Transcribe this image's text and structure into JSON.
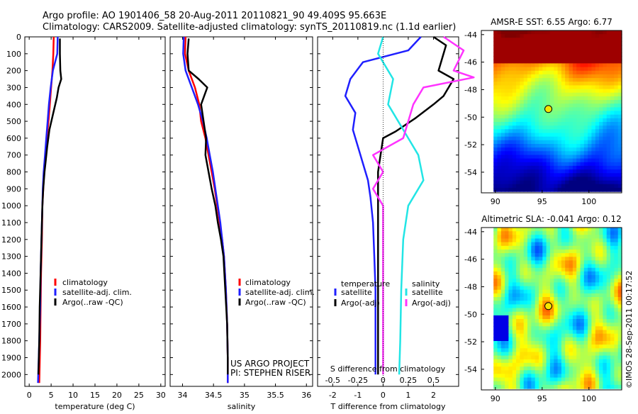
{
  "header": {
    "line1": "Argo profile: AO 1901406_58 20-Aug-2011 20110821_90 49.409S 95.663E",
    "line2": "Climatology: CARS2009. Satellite-adjusted climatology: synTS_20110819.nc (1.1d earlier)"
  },
  "footer": {
    "credit": "©IMOS 28-Sep-2011 00:17:52",
    "project": "US ARGO PROJECT",
    "pi": "PI: STEPHEN RISER"
  },
  "colors": {
    "climatology": "#ff0000",
    "satellite_t": "#1f1fff",
    "argo": "#000000",
    "satellite_s": "#22e5e5",
    "argo_s": "#ff33ff"
  },
  "chart_data": [
    {
      "id": "temperature",
      "type": "line",
      "xlabel": "temperature (deg C)",
      "xlim": [
        -1,
        31
      ],
      "xticks": [
        0,
        5,
        10,
        15,
        20,
        25,
        30
      ],
      "ylim": [
        2070,
        0
      ],
      "yticks": [
        0,
        100,
        200,
        300,
        400,
        500,
        600,
        700,
        800,
        900,
        1000,
        1100,
        1200,
        1300,
        1400,
        1500,
        1600,
        1700,
        1800,
        1900,
        2000
      ],
      "legend": [
        "climatology",
        "satellite-adj. clim.",
        "Argo(..raw -QC)"
      ],
      "series": [
        {
          "name": "climatology",
          "color": "#ff0000",
          "points": [
            [
              5.6,
              0
            ],
            [
              5.5,
              100
            ],
            [
              5.3,
              200
            ],
            [
              5.0,
              300
            ],
            [
              4.7,
              400
            ],
            [
              4.4,
              500
            ],
            [
              4.0,
              600
            ],
            [
              3.7,
              700
            ],
            [
              3.4,
              800
            ],
            [
              3.2,
              900
            ],
            [
              3.0,
              1000
            ],
            [
              2.9,
              1200
            ],
            [
              2.7,
              1400
            ],
            [
              2.6,
              1600
            ],
            [
              2.5,
              1800
            ],
            [
              2.3,
              2050
            ]
          ]
        },
        {
          "name": "satellite-adj. clim.",
          "color": "#1f1fff",
          "points": [
            [
              6.5,
              0
            ],
            [
              6.4,
              100
            ],
            [
              5.4,
              200
            ],
            [
              4.9,
              300
            ],
            [
              4.5,
              400
            ],
            [
              4.2,
              500
            ],
            [
              3.9,
              600
            ],
            [
              3.6,
              700
            ],
            [
              3.3,
              800
            ],
            [
              3.1,
              900
            ],
            [
              3.0,
              1000
            ],
            [
              2.8,
              1200
            ],
            [
              2.6,
              1400
            ],
            [
              2.5,
              1600
            ],
            [
              2.3,
              1800
            ],
            [
              2.0,
              2050
            ]
          ]
        },
        {
          "name": "Argo(..raw -QC)",
          "color": "#000000",
          "points": [
            [
              7.0,
              10
            ],
            [
              7.0,
              100
            ],
            [
              7.1,
              200
            ],
            [
              7.3,
              250
            ],
            [
              6.7,
              300
            ],
            [
              6.3,
              360
            ],
            [
              5.5,
              450
            ],
            [
              4.6,
              550
            ],
            [
              4.1,
              650
            ],
            [
              3.7,
              750
            ],
            [
              3.5,
              800
            ],
            [
              3.2,
              900
            ],
            [
              3.0,
              1000
            ],
            [
              2.8,
              1200
            ],
            [
              2.6,
              1400
            ],
            [
              2.4,
              1600
            ],
            [
              2.3,
              1800
            ],
            [
              2.1,
              2000
            ]
          ]
        }
      ]
    },
    {
      "id": "salinity",
      "type": "line",
      "xlabel": "salinity",
      "xlim": [
        33.8,
        36.1
      ],
      "xticks": [
        34,
        34.5,
        35,
        35.5,
        36
      ],
      "xticklabels": [
        "34",
        "34.5",
        "35",
        "35.5",
        "36"
      ],
      "ylim": [
        2070,
        0
      ],
      "legend": [
        "climatology",
        "satellite-adj. clim.",
        "Argo(..raw -QC)"
      ],
      "series": [
        {
          "name": "climatology",
          "color": "#ff0000",
          "points": [
            [
              34.05,
              0
            ],
            [
              34.04,
              100
            ],
            [
              34.1,
              200
            ],
            [
              34.2,
              300
            ],
            [
              34.27,
              400
            ],
            [
              34.3,
              500
            ],
            [
              34.37,
              600
            ],
            [
              34.42,
              700
            ],
            [
              34.47,
              800
            ],
            [
              34.52,
              900
            ],
            [
              34.56,
              1000
            ],
            [
              34.6,
              1100
            ],
            [
              34.64,
              1200
            ],
            [
              34.67,
              1300
            ],
            [
              34.7,
              1500
            ],
            [
              34.72,
              1700
            ],
            [
              34.73,
              1900
            ],
            [
              34.73,
              2050
            ]
          ]
        },
        {
          "name": "satellite-adj. clim.",
          "color": "#1f1fff",
          "points": [
            [
              34.02,
              0
            ],
            [
              34.01,
              100
            ],
            [
              34.05,
              200
            ],
            [
              34.15,
              300
            ],
            [
              34.25,
              400
            ],
            [
              34.33,
              500
            ],
            [
              34.39,
              600
            ],
            [
              34.44,
              700
            ],
            [
              34.49,
              800
            ],
            [
              34.53,
              900
            ],
            [
              34.57,
              1000
            ],
            [
              34.61,
              1100
            ],
            [
              34.64,
              1200
            ],
            [
              34.67,
              1300
            ],
            [
              34.7,
              1500
            ],
            [
              34.72,
              1700
            ],
            [
              34.73,
              1900
            ],
            [
              34.73,
              2050
            ]
          ]
        },
        {
          "name": "Argo(..raw -QC)",
          "color": "#000000",
          "points": [
            [
              34.1,
              10
            ],
            [
              34.08,
              100
            ],
            [
              34.1,
              200
            ],
            [
              34.26,
              250
            ],
            [
              34.4,
              300
            ],
            [
              34.3,
              400
            ],
            [
              34.34,
              500
            ],
            [
              34.38,
              600
            ],
            [
              34.37,
              700
            ],
            [
              34.42,
              800
            ],
            [
              34.47,
              900
            ],
            [
              34.53,
              1000
            ],
            [
              34.57,
              1100
            ],
            [
              34.62,
              1200
            ],
            [
              34.66,
              1300
            ],
            [
              34.69,
              1500
            ],
            [
              34.72,
              1700
            ],
            [
              34.73,
              1900
            ],
            [
              34.73,
              2000
            ]
          ]
        }
      ]
    },
    {
      "id": "difference",
      "type": "line",
      "xlabel": "T difference from climatology",
      "xlabel_top": "S difference from climatology",
      "xlim": [
        -2.6,
        3.0
      ],
      "xticks": [
        -2,
        -1,
        0,
        1,
        2
      ],
      "top_ticks": [
        -0.5,
        -0.25,
        0,
        0.25,
        0.5
      ],
      "top_ticklabels": [
        "-0.5",
        "-0.25",
        "0",
        "0.25",
        "0.5"
      ],
      "top_scale": 4,
      "ylim": [
        2070,
        0
      ],
      "legend_left_title": "temperature",
      "legend_right_title": "salinity",
      "legend": [
        "satellite",
        "Argo(-adj)",
        "satellite",
        "Argo(-adj)"
      ],
      "series": [
        {
          "name": "satellite",
          "color": "#1f1fff",
          "points": [
            [
              1.5,
              0
            ],
            [
              1.0,
              80
            ],
            [
              -0.8,
              150
            ],
            [
              -1.3,
              250
            ],
            [
              -1.5,
              350
            ],
            [
              -1.1,
              450
            ],
            [
              -1.2,
              550
            ],
            [
              -1.0,
              650
            ],
            [
              -0.8,
              750
            ],
            [
              -0.6,
              850
            ],
            [
              -0.5,
              950
            ],
            [
              -0.4,
              1100
            ],
            [
              -0.35,
              1300
            ],
            [
              -0.3,
              1500
            ],
            [
              -0.3,
              1700
            ],
            [
              -0.3,
              2000
            ]
          ]
        },
        {
          "name": "Argo(-adj)",
          "color": "#000000",
          "points": [
            [
              2.0,
              0
            ],
            [
              2.5,
              50
            ],
            [
              2.2,
              200
            ],
            [
              2.8,
              250
            ],
            [
              2.4,
              350
            ],
            [
              2.0,
              400
            ],
            [
              1.3,
              480
            ],
            [
              0.5,
              560
            ],
            [
              0.0,
              600
            ],
            [
              -0.1,
              700
            ],
            [
              -0.2,
              800
            ],
            [
              -0.2,
              1000
            ],
            [
              -0.2,
              1200
            ],
            [
              -0.2,
              1500
            ],
            [
              -0.2,
              1700
            ],
            [
              -0.2,
              2000
            ]
          ]
        },
        {
          "name": "satellite",
          "color": "#22e5e5",
          "points": [
            [
              0.0,
              0
            ],
            [
              -0.05,
              100
            ],
            [
              0.1,
              250
            ],
            [
              0.05,
              400
            ],
            [
              0.25,
              600
            ],
            [
              0.35,
              700
            ],
            [
              0.4,
              850
            ],
            [
              0.25,
              1000
            ],
            [
              0.2,
              1200
            ],
            [
              0.18,
              1500
            ],
            [
              0.17,
              1800
            ],
            [
              0.16,
              2000
            ]
          ]
        },
        {
          "name": "Argo(-adj)",
          "color": "#ff33ff",
          "points": [
            [
              0.6,
              0
            ],
            [
              0.8,
              80
            ],
            [
              0.7,
              200
            ],
            [
              0.9,
              240
            ],
            [
              0.4,
              300
            ],
            [
              0.3,
              400
            ],
            [
              0.25,
              500
            ],
            [
              0.2,
              600
            ],
            [
              -0.1,
              700
            ],
            [
              0.0,
              800
            ],
            [
              -0.1,
              900
            ],
            [
              0.0,
              1000
            ],
            [
              0.0,
              1200
            ],
            [
              0.0,
              1500
            ],
            [
              0.0,
              1800
            ],
            [
              0.0,
              2000
            ]
          ]
        }
      ]
    },
    {
      "id": "sst_map",
      "type": "heatmap",
      "title": "AMSR-E SST: 6.55 Argo: 6.77",
      "xlim": [
        88.5,
        103.5
      ],
      "ylim": [
        -55.5,
        -43.7
      ],
      "xticks": [
        90,
        95,
        100
      ],
      "yticks": [
        -44,
        -46,
        -48,
        -50,
        -52,
        -54
      ],
      "marker": [
        95.663,
        -49.409
      ]
    },
    {
      "id": "sla_map",
      "type": "heatmap",
      "title": "Altimetric SLA: -0.041 Argo: 0.12",
      "xlim": [
        88.5,
        103.5
      ],
      "ylim": [
        -55.5,
        -43.7
      ],
      "xticks": [
        90,
        95,
        100
      ],
      "yticks": [
        -44,
        -46,
        -48,
        -50,
        -52,
        -54
      ],
      "marker": [
        95.663,
        -49.409
      ]
    }
  ]
}
